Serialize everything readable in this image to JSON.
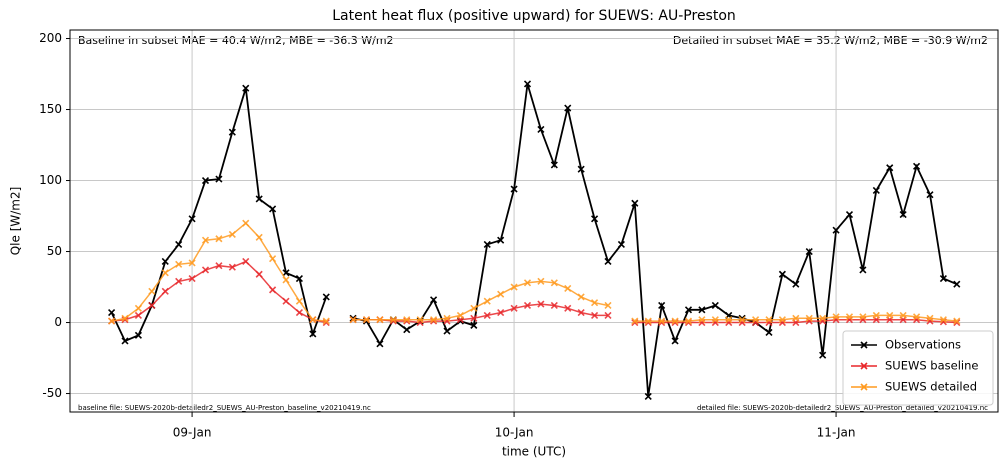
{
  "chart_data": {
    "type": "line",
    "title": "Latent heat flux (positive upward) for SUEWS: AU-Preston",
    "xlabel": "time (UTC)",
    "ylabel": "Qle [W/m2]",
    "annotations": [
      "Baseline in subset MAE = 40.4 W/m2, MBE = -36.3 W/m2",
      "Detailed in subset MAE = 35.2 W/m2, MBE = -30.9 W/m2",
      "baseline file: SUEWS-2020b-detailedr2_SUEWS_AU-Preston_baseline_v20210419.nc",
      "detailed file: SUEWS-2020b-detailedr2_SUEWS_AU-Preston_detailed_v20210419.nc"
    ],
    "x": [
      -6,
      -5,
      -4,
      -3,
      -2,
      -1,
      0,
      1,
      2,
      3,
      4,
      5,
      6,
      7,
      8,
      9,
      10,
      11,
      12,
      13,
      14,
      15,
      16,
      17,
      18,
      19,
      20,
      21,
      22,
      23,
      24,
      25,
      26,
      27,
      28,
      29,
      30,
      31,
      32,
      33,
      34,
      35,
      36,
      37,
      38,
      39,
      40,
      41,
      42,
      43,
      44,
      45,
      46,
      47,
      48,
      49,
      50,
      51,
      52,
      53,
      54,
      55,
      56,
      57
    ],
    "series": [
      {
        "name": "Observations",
        "color": "#000000",
        "values": [
          7,
          -13,
          -9,
          12,
          43,
          55,
          73,
          100,
          101,
          134,
          165,
          87,
          80,
          35,
          31,
          -8,
          18,
          null,
          3,
          1,
          -15,
          2,
          -5,
          1,
          16,
          -6,
          1,
          -2,
          55,
          58,
          94,
          168,
          136,
          111,
          151,
          108,
          73,
          43,
          55,
          84,
          -52,
          12,
          -13,
          9,
          9,
          12,
          5,
          3,
          0,
          -7,
          34,
          27,
          50,
          -23,
          65,
          76,
          37,
          93,
          109,
          76,
          110,
          90,
          31,
          27
        ]
      },
      {
        "name": "SUEWS baseline",
        "color": "#e8272a",
        "values": [
          1,
          2,
          5,
          12,
          22,
          29,
          31,
          37,
          40,
          39,
          43,
          34,
          23,
          15,
          7,
          2,
          0,
          null,
          2,
          2,
          2,
          1,
          1,
          0,
          1,
          1,
          2,
          3,
          5,
          7,
          10,
          12,
          13,
          12,
          10,
          7,
          5,
          5,
          null,
          0,
          0,
          0,
          0,
          0,
          0,
          0,
          0,
          0,
          0,
          0,
          0,
          0,
          1,
          1,
          2,
          2,
          2,
          2,
          2,
          2,
          2,
          1,
          0.5,
          0
        ]
      },
      {
        "name": "SUEWS detailed",
        "color": "#ff9a1f",
        "values": [
          1,
          3,
          10,
          22,
          35,
          41,
          42,
          58,
          59,
          62,
          70,
          60,
          45,
          30,
          15,
          2,
          1,
          null,
          2,
          2,
          2,
          2,
          2,
          2,
          2,
          3,
          5,
          10,
          15,
          20,
          25,
          28,
          29,
          28,
          24,
          18,
          14,
          12,
          null,
          1,
          1,
          1,
          1,
          1,
          2,
          2,
          2,
          2,
          2,
          2,
          2,
          3,
          3,
          3,
          4,
          4,
          4,
          5,
          5,
          5,
          4,
          3,
          2,
          1
        ]
      }
    ],
    "xlim": [
      -9.1,
      60.07
    ],
    "xticks": [
      {
        "value": 0,
        "label": "09-Jan"
      },
      {
        "value": 24,
        "label": "10-Jan"
      },
      {
        "value": 48,
        "label": "11-Jan"
      }
    ],
    "ylim": [
      -63,
      206
    ],
    "yticks": [
      -50,
      0,
      50,
      100,
      150,
      200
    ],
    "grid": true,
    "legend": "lower right"
  }
}
